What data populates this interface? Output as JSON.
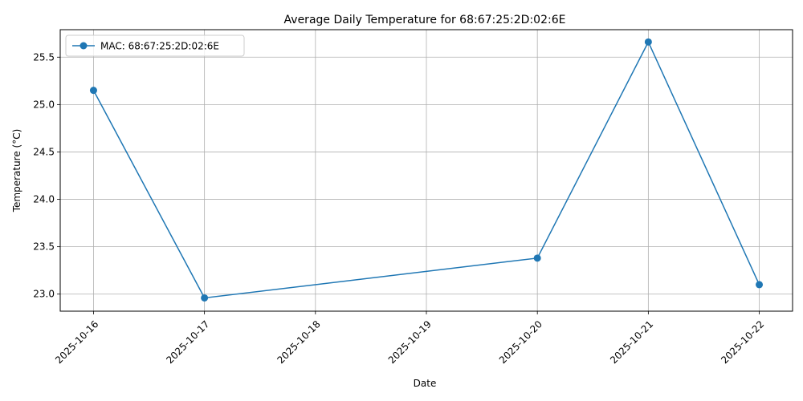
{
  "chart_data": {
    "type": "line",
    "title": "Average Daily Temperature for 68:67:25:2D:02:6E",
    "xlabel": "Date",
    "ylabel": "Temperature (°C)",
    "x_ticks": [
      "2025-10-16",
      "2025-10-17",
      "2025-10-18",
      "2025-10-19",
      "2025-10-20",
      "2025-10-21",
      "2025-10-22"
    ],
    "y_ticks": [
      "23.0",
      "23.5",
      "24.0",
      "24.5",
      "25.0",
      "25.5"
    ],
    "xlim": [
      "2025-10-15.7",
      "2025-10-22.3"
    ],
    "ylim": [
      22.82,
      25.79
    ],
    "grid": true,
    "legend_position": "upper-left",
    "series": [
      {
        "name": "MAC: 68:67:25:2D:02:6E",
        "color": "#1f77b4",
        "marker": "circle",
        "x": [
          "2025-10-16",
          "2025-10-17",
          "2025-10-20",
          "2025-10-21",
          "2025-10-22"
        ],
        "y": [
          25.15,
          22.96,
          23.38,
          25.66,
          23.1
        ]
      }
    ]
  }
}
